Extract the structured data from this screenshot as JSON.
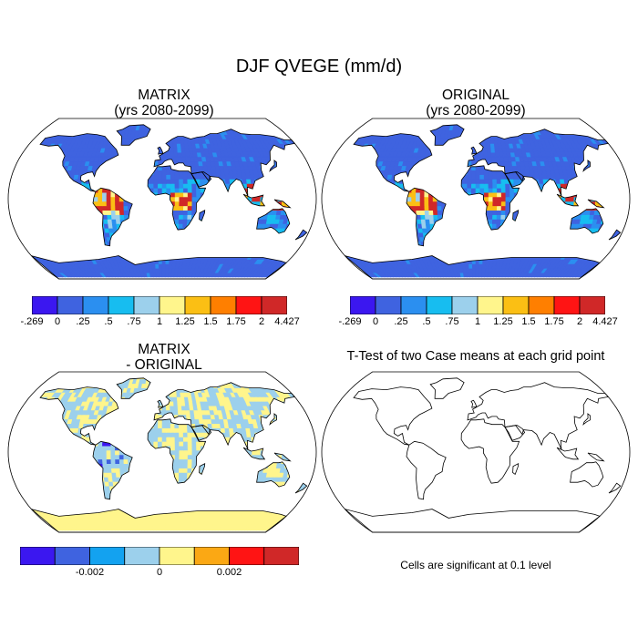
{
  "title": "DJF QVEGE (mm/d)",
  "panels": {
    "top_left": {
      "title_line1": "MATRIX",
      "title_line2": "(yrs 2080-2099)"
    },
    "top_right": {
      "title_line1": "ORIGINAL",
      "title_line2": "(yrs 2080-2099)"
    },
    "bottom_left": {
      "title_line1": "MATRIX",
      "title_line2": "- ORIGINAL"
    },
    "bottom_right": {
      "title": "T-Test of two Case means at each grid point",
      "note": "Cells are significant at 0.1 level"
    }
  },
  "colorbar_main": {
    "colors": [
      "#3b17f0",
      "#3f63e0",
      "#2b8ff0",
      "#17bdf0",
      "#9cd0ec",
      "#fff58c",
      "#fbbf14",
      "#ff7f00",
      "#ff1414",
      "#d02828"
    ],
    "labels": [
      "-.269",
      "0",
      ".25",
      ".5",
      ".75",
      "1",
      "1.25",
      "1.5",
      "1.75",
      "2",
      "4.427"
    ]
  },
  "colorbar_diff": {
    "colors": [
      "#3b17f0",
      "#3f63e0",
      "#13a2f0",
      "#9cd0ec",
      "#fff58c",
      "#fba814",
      "#ff1414",
      "#d02828"
    ],
    "labels": [
      "-0.002",
      "0",
      "0.002"
    ]
  },
  "map_colors": {
    "ocean": "#ffffff",
    "cold": "#3f63e0",
    "mid_blue": "#2b8ff0",
    "light_blue": "#9cd0ec",
    "cyan": "#17bdf0",
    "yellow": "#fff58c",
    "orange": "#fbbf14",
    "red": "#d02828",
    "purple": "#3b17f0",
    "coast": "#000000"
  }
}
